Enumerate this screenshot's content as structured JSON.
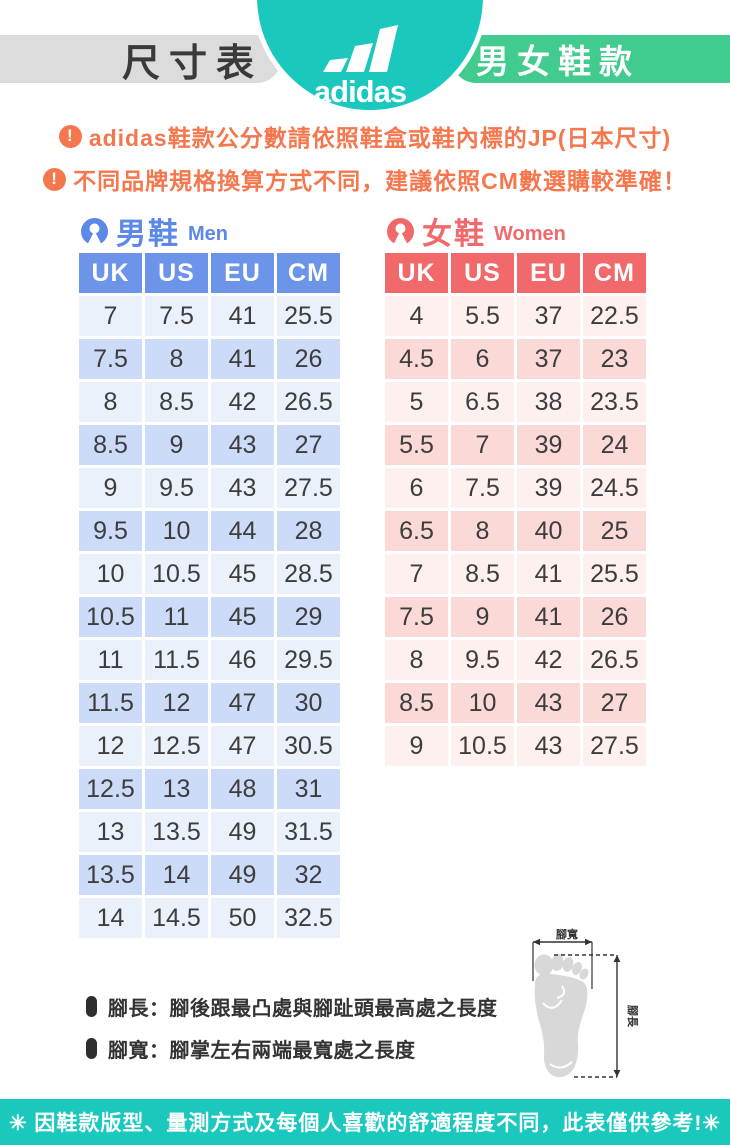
{
  "header": {
    "size_chart_label": "尺寸表",
    "brand_wordmark": "adidas",
    "category_label": "男女鞋款"
  },
  "notices": {
    "icon_glyph": "!",
    "line1": "adidas鞋款公分數請依照鞋盒或鞋內標的JP(日本尺寸)",
    "line2": "不同品牌規格換算方式不同，建議依照CM數選購較準確！"
  },
  "tables": {
    "men": {
      "title_zh": "男鞋",
      "title_en": "Men",
      "columns": [
        "UK",
        "US",
        "EU",
        "CM"
      ],
      "rows": [
        [
          "7",
          "7.5",
          "41",
          "25.5"
        ],
        [
          "7.5",
          "8",
          "41",
          "26"
        ],
        [
          "8",
          "8.5",
          "42",
          "26.5"
        ],
        [
          "8.5",
          "9",
          "43",
          "27"
        ],
        [
          "9",
          "9.5",
          "43",
          "27.5"
        ],
        [
          "9.5",
          "10",
          "44",
          "28"
        ],
        [
          "10",
          "10.5",
          "45",
          "28.5"
        ],
        [
          "10.5",
          "11",
          "45",
          "29"
        ],
        [
          "11",
          "11.5",
          "46",
          "29.5"
        ],
        [
          "11.5",
          "12",
          "47",
          "30"
        ],
        [
          "12",
          "12.5",
          "47",
          "30.5"
        ],
        [
          "12.5",
          "13",
          "48",
          "31"
        ],
        [
          "13",
          "13.5",
          "49",
          "31.5"
        ],
        [
          "13.5",
          "14",
          "49",
          "32"
        ],
        [
          "14",
          "14.5",
          "50",
          "32.5"
        ]
      ]
    },
    "women": {
      "title_zh": "女鞋",
      "title_en": "Women",
      "columns": [
        "UK",
        "US",
        "EU",
        "CM"
      ],
      "rows": [
        [
          "4",
          "5.5",
          "37",
          "22.5"
        ],
        [
          "4.5",
          "6",
          "37",
          "23"
        ],
        [
          "5",
          "6.5",
          "38",
          "23.5"
        ],
        [
          "5.5",
          "7",
          "39",
          "24"
        ],
        [
          "6",
          "7.5",
          "39",
          "24.5"
        ],
        [
          "6.5",
          "8",
          "40",
          "25"
        ],
        [
          "7",
          "8.5",
          "41",
          "25.5"
        ],
        [
          "7.5",
          "9",
          "41",
          "26"
        ],
        [
          "8",
          "9.5",
          "42",
          "26.5"
        ],
        [
          "8.5",
          "10",
          "43",
          "27"
        ],
        [
          "9",
          "10.5",
          "43",
          "27.5"
        ]
      ]
    }
  },
  "diagram": {
    "width_label": "腳寬",
    "length_label": "腳長"
  },
  "notes": {
    "line1": "腳長：腳後跟最凸處與腳趾頭最高處之長度",
    "line2": "腳寬：腳掌左右兩端最寬處之長度"
  },
  "footer": {
    "text": "✳ 因鞋款版型、量測方式及每個人喜歡的舒適程度不同，此表僅供參考!✳"
  },
  "colors": {
    "teal": "#1AC8BE",
    "green_pill": "#41CB8E",
    "gray_pill": "#DCDCDC",
    "notice_orange": "#F5774E",
    "men_header": "#6C94E9",
    "men_row_light": "#EBF1FB",
    "men_row_dark": "#CCDBF7",
    "men_accent": "#5C88E8",
    "women_header": "#F2696B",
    "women_row_light": "#FDF0EE",
    "women_row_dark": "#FBD9D7",
    "women_accent": "#F2696B",
    "cell_text": "#3D3D3D",
    "foot_gray": "#D8D8D8"
  }
}
